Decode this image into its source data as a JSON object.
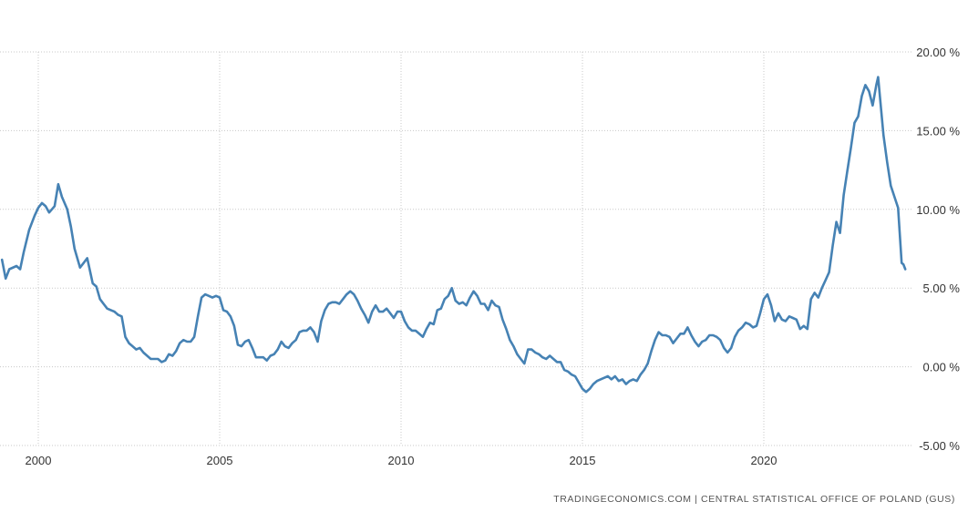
{
  "chart_data": {
    "type": "line",
    "title": "",
    "xlabel": "",
    "ylabel": "",
    "xlim": [
      1999.0,
      2023.9
    ],
    "ylim": [
      -5,
      20
    ],
    "grid": true,
    "x_ticks": [
      {
        "value": 2000,
        "label": "2000"
      },
      {
        "value": 2005,
        "label": "2005"
      },
      {
        "value": 2010,
        "label": "2010"
      },
      {
        "value": 2015,
        "label": "2015"
      },
      {
        "value": 2020,
        "label": "2020"
      }
    ],
    "y_ticks": [
      {
        "value": 20,
        "label": "20.00 %"
      },
      {
        "value": 15,
        "label": "15.00 %"
      },
      {
        "value": 10,
        "label": "10.00 %"
      },
      {
        "value": 5,
        "label": "5.00 %"
      },
      {
        "value": 0,
        "label": "0.00 %"
      },
      {
        "value": -5,
        "label": "-5.00 %"
      }
    ],
    "series": [
      {
        "color": "#4682b4",
        "points": [
          [
            1999.0,
            6.8
          ],
          [
            1999.1,
            5.6
          ],
          [
            1999.2,
            6.2
          ],
          [
            1999.4,
            6.4
          ],
          [
            1999.5,
            6.2
          ],
          [
            1999.6,
            7.3
          ],
          [
            1999.75,
            8.7
          ],
          [
            1999.9,
            9.6
          ],
          [
            2000.0,
            10.1
          ],
          [
            2000.1,
            10.4
          ],
          [
            2000.2,
            10.2
          ],
          [
            2000.3,
            9.8
          ],
          [
            2000.45,
            10.2
          ],
          [
            2000.55,
            11.6
          ],
          [
            2000.65,
            10.8
          ],
          [
            2000.8,
            10.0
          ],
          [
            2000.9,
            8.9
          ],
          [
            2001.0,
            7.5
          ],
          [
            2001.15,
            6.3
          ],
          [
            2001.25,
            6.6
          ],
          [
            2001.35,
            6.9
          ],
          [
            2001.5,
            5.3
          ],
          [
            2001.6,
            5.1
          ],
          [
            2001.7,
            4.3
          ],
          [
            2001.8,
            4.0
          ],
          [
            2001.9,
            3.7
          ],
          [
            2002.0,
            3.6
          ],
          [
            2002.1,
            3.5
          ],
          [
            2002.2,
            3.3
          ],
          [
            2002.3,
            3.2
          ],
          [
            2002.4,
            1.9
          ],
          [
            2002.5,
            1.5
          ],
          [
            2002.6,
            1.3
          ],
          [
            2002.7,
            1.1
          ],
          [
            2002.8,
            1.2
          ],
          [
            2002.9,
            0.9
          ],
          [
            2003.0,
            0.7
          ],
          [
            2003.1,
            0.5
          ],
          [
            2003.2,
            0.5
          ],
          [
            2003.3,
            0.5
          ],
          [
            2003.4,
            0.3
          ],
          [
            2003.5,
            0.4
          ],
          [
            2003.6,
            0.8
          ],
          [
            2003.7,
            0.7
          ],
          [
            2003.8,
            1.0
          ],
          [
            2003.9,
            1.5
          ],
          [
            2004.0,
            1.7
          ],
          [
            2004.1,
            1.6
          ],
          [
            2004.2,
            1.6
          ],
          [
            2004.3,
            1.9
          ],
          [
            2004.4,
            3.2
          ],
          [
            2004.5,
            4.4
          ],
          [
            2004.6,
            4.6
          ],
          [
            2004.7,
            4.5
          ],
          [
            2004.8,
            4.4
          ],
          [
            2004.9,
            4.5
          ],
          [
            2005.0,
            4.4
          ],
          [
            2005.1,
            3.6
          ],
          [
            2005.2,
            3.5
          ],
          [
            2005.3,
            3.2
          ],
          [
            2005.4,
            2.6
          ],
          [
            2005.5,
            1.4
          ],
          [
            2005.6,
            1.3
          ],
          [
            2005.7,
            1.6
          ],
          [
            2005.8,
            1.7
          ],
          [
            2005.9,
            1.2
          ],
          [
            2006.0,
            0.6
          ],
          [
            2006.1,
            0.6
          ],
          [
            2006.2,
            0.6
          ],
          [
            2006.3,
            0.4
          ],
          [
            2006.4,
            0.7
          ],
          [
            2006.5,
            0.8
          ],
          [
            2006.6,
            1.1
          ],
          [
            2006.7,
            1.6
          ],
          [
            2006.8,
            1.3
          ],
          [
            2006.9,
            1.2
          ],
          [
            2007.0,
            1.5
          ],
          [
            2007.1,
            1.7
          ],
          [
            2007.2,
            2.2
          ],
          [
            2007.3,
            2.3
          ],
          [
            2007.4,
            2.3
          ],
          [
            2007.5,
            2.5
          ],
          [
            2007.6,
            2.2
          ],
          [
            2007.7,
            1.6
          ],
          [
            2007.8,
            2.9
          ],
          [
            2007.9,
            3.6
          ],
          [
            2008.0,
            4.0
          ],
          [
            2008.1,
            4.1
          ],
          [
            2008.2,
            4.1
          ],
          [
            2008.3,
            4.0
          ],
          [
            2008.4,
            4.3
          ],
          [
            2008.5,
            4.6
          ],
          [
            2008.6,
            4.8
          ],
          [
            2008.7,
            4.6
          ],
          [
            2008.8,
            4.2
          ],
          [
            2008.9,
            3.7
          ],
          [
            2009.0,
            3.3
          ],
          [
            2009.1,
            2.8
          ],
          [
            2009.2,
            3.5
          ],
          [
            2009.3,
            3.9
          ],
          [
            2009.4,
            3.5
          ],
          [
            2009.5,
            3.5
          ],
          [
            2009.6,
            3.7
          ],
          [
            2009.7,
            3.4
          ],
          [
            2009.8,
            3.1
          ],
          [
            2009.9,
            3.5
          ],
          [
            2010.0,
            3.5
          ],
          [
            2010.1,
            2.9
          ],
          [
            2010.2,
            2.5
          ],
          [
            2010.3,
            2.3
          ],
          [
            2010.4,
            2.3
          ],
          [
            2010.5,
            2.1
          ],
          [
            2010.6,
            1.9
          ],
          [
            2010.7,
            2.4
          ],
          [
            2010.8,
            2.8
          ],
          [
            2010.9,
            2.7
          ],
          [
            2011.0,
            3.6
          ],
          [
            2011.1,
            3.7
          ],
          [
            2011.2,
            4.3
          ],
          [
            2011.3,
            4.5
          ],
          [
            2011.4,
            5.0
          ],
          [
            2011.5,
            4.2
          ],
          [
            2011.6,
            4.0
          ],
          [
            2011.7,
            4.1
          ],
          [
            2011.8,
            3.9
          ],
          [
            2011.9,
            4.4
          ],
          [
            2012.0,
            4.8
          ],
          [
            2012.1,
            4.5
          ],
          [
            2012.2,
            4.0
          ],
          [
            2012.3,
            4.0
          ],
          [
            2012.4,
            3.6
          ],
          [
            2012.5,
            4.2
          ],
          [
            2012.6,
            3.9
          ],
          [
            2012.7,
            3.8
          ],
          [
            2012.8,
            3.0
          ],
          [
            2012.9,
            2.4
          ],
          [
            2013.0,
            1.7
          ],
          [
            2013.1,
            1.3
          ],
          [
            2013.2,
            0.8
          ],
          [
            2013.3,
            0.5
          ],
          [
            2013.4,
            0.2
          ],
          [
            2013.5,
            1.1
          ],
          [
            2013.6,
            1.1
          ],
          [
            2013.7,
            0.9
          ],
          [
            2013.8,
            0.8
          ],
          [
            2013.9,
            0.6
          ],
          [
            2014.0,
            0.5
          ],
          [
            2014.1,
            0.7
          ],
          [
            2014.2,
            0.5
          ],
          [
            2014.3,
            0.3
          ],
          [
            2014.4,
            0.3
          ],
          [
            2014.5,
            -0.2
          ],
          [
            2014.6,
            -0.3
          ],
          [
            2014.7,
            -0.5
          ],
          [
            2014.8,
            -0.6
          ],
          [
            2014.9,
            -1.0
          ],
          [
            2015.0,
            -1.4
          ],
          [
            2015.1,
            -1.6
          ],
          [
            2015.2,
            -1.4
          ],
          [
            2015.3,
            -1.1
          ],
          [
            2015.4,
            -0.9
          ],
          [
            2015.5,
            -0.8
          ],
          [
            2015.6,
            -0.7
          ],
          [
            2015.7,
            -0.6
          ],
          [
            2015.8,
            -0.8
          ],
          [
            2015.9,
            -0.6
          ],
          [
            2016.0,
            -0.9
          ],
          [
            2016.1,
            -0.8
          ],
          [
            2016.2,
            -1.1
          ],
          [
            2016.3,
            -0.9
          ],
          [
            2016.4,
            -0.8
          ],
          [
            2016.5,
            -0.9
          ],
          [
            2016.6,
            -0.5
          ],
          [
            2016.7,
            -0.2
          ],
          [
            2016.8,
            0.2
          ],
          [
            2016.9,
            1.0
          ],
          [
            2017.0,
            1.7
          ],
          [
            2017.1,
            2.2
          ],
          [
            2017.2,
            2.0
          ],
          [
            2017.3,
            2.0
          ],
          [
            2017.4,
            1.9
          ],
          [
            2017.5,
            1.5
          ],
          [
            2017.6,
            1.8
          ],
          [
            2017.7,
            2.1
          ],
          [
            2017.8,
            2.1
          ],
          [
            2017.9,
            2.5
          ],
          [
            2018.0,
            2.0
          ],
          [
            2018.1,
            1.6
          ],
          [
            2018.2,
            1.3
          ],
          [
            2018.3,
            1.6
          ],
          [
            2018.4,
            1.7
          ],
          [
            2018.5,
            2.0
          ],
          [
            2018.6,
            2.0
          ],
          [
            2018.7,
            1.9
          ],
          [
            2018.8,
            1.7
          ],
          [
            2018.9,
            1.2
          ],
          [
            2019.0,
            0.9
          ],
          [
            2019.1,
            1.2
          ],
          [
            2019.2,
            1.9
          ],
          [
            2019.3,
            2.3
          ],
          [
            2019.4,
            2.5
          ],
          [
            2019.5,
            2.8
          ],
          [
            2019.6,
            2.7
          ],
          [
            2019.7,
            2.5
          ],
          [
            2019.8,
            2.6
          ],
          [
            2019.9,
            3.4
          ],
          [
            2020.0,
            4.3
          ],
          [
            2020.1,
            4.6
          ],
          [
            2020.2,
            3.9
          ],
          [
            2020.3,
            2.9
          ],
          [
            2020.4,
            3.4
          ],
          [
            2020.5,
            3.0
          ],
          [
            2020.6,
            2.9
          ],
          [
            2020.7,
            3.2
          ],
          [
            2020.8,
            3.1
          ],
          [
            2020.9,
            3.0
          ],
          [
            2021.0,
            2.4
          ],
          [
            2021.1,
            2.6
          ],
          [
            2021.2,
            2.4
          ],
          [
            2021.3,
            4.3
          ],
          [
            2021.4,
            4.7
          ],
          [
            2021.5,
            4.4
          ],
          [
            2021.6,
            5.0
          ],
          [
            2021.7,
            5.5
          ],
          [
            2021.8,
            6.0
          ],
          [
            2021.9,
            7.7
          ],
          [
            2022.0,
            9.2
          ],
          [
            2022.1,
            8.5
          ],
          [
            2022.2,
            10.9
          ],
          [
            2022.3,
            12.4
          ],
          [
            2022.4,
            13.9
          ],
          [
            2022.5,
            15.5
          ],
          [
            2022.6,
            15.9
          ],
          [
            2022.7,
            17.2
          ],
          [
            2022.8,
            17.9
          ],
          [
            2022.9,
            17.5
          ],
          [
            2023.0,
            16.6
          ],
          [
            2023.1,
            17.9
          ],
          [
            2023.15,
            18.4
          ],
          [
            2023.3,
            14.7
          ],
          [
            2023.4,
            13.0
          ],
          [
            2023.5,
            11.5
          ],
          [
            2023.6,
            10.8
          ],
          [
            2023.7,
            10.1
          ],
          [
            2023.8,
            6.6
          ],
          [
            2023.85,
            6.5
          ],
          [
            2023.9,
            6.2
          ]
        ]
      }
    ]
  },
  "source": "TRADINGECONOMICS.COM  |  CENTRAL STATISTICAL OFFICE OF POLAND (GUS)"
}
